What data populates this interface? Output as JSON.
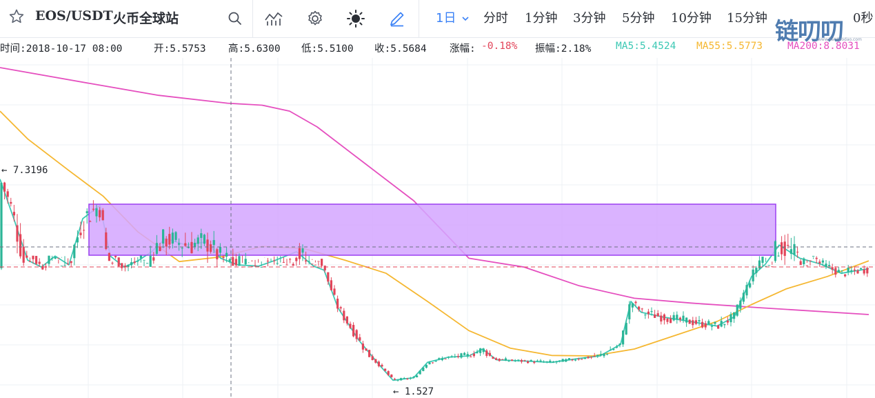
{
  "toolbar": {
    "pair": "EOS/USDT",
    "exchange": "火币全球站",
    "icons": [
      "star-icon",
      "search-icon",
      "indicator-icon",
      "settings-icon",
      "theme-sun-icon",
      "draw-pencil-icon"
    ],
    "periods": [
      {
        "label": "1日",
        "active": true
      },
      {
        "label": "分时",
        "active": false
      },
      {
        "label": "1分钟",
        "active": false
      },
      {
        "label": "3分钟",
        "active": false
      },
      {
        "label": "5分钟",
        "active": false
      },
      {
        "label": "10分钟",
        "active": false
      },
      {
        "label": "15分钟",
        "active": false
      },
      {
        "label": "0秒",
        "active": false
      }
    ],
    "watermark": "链叨叨",
    "watermark_url": "www.liandaodao.com"
  },
  "info": {
    "time": "时间:2018-10-17 08:00",
    "open": "开:5.5753",
    "high": "高:5.6300",
    "low": "低:5.5100",
    "close": "收:5.5684",
    "change": "涨幅:",
    "change_val": "-0.18%",
    "amplitude": "振幅:2.18%",
    "ma5": "MA5:5.4524",
    "ma55": "MA55:5.5773",
    "ma200": "MA200:8.8031"
  },
  "colors": {
    "up": "#2bb597",
    "down": "#e2455a",
    "ma5": "#3cc8b4",
    "ma55": "#f5b731",
    "ma200": "#e54fbf",
    "box_fill": "#d3a6ff",
    "box_stroke": "#9b3ff0",
    "active": "#3b82f6",
    "change_neg": "#e2455a"
  },
  "chart_data": {
    "type": "candlestick",
    "ylim": [
      1.0,
      10.0
    ],
    "grid": true,
    "annotations": {
      "max_label": "← 7.3196",
      "max_value": 7.3196,
      "min_label": "← 1.527",
      "min_value": 1.527,
      "rectangle": {
        "price_high": 6.52,
        "price_low": 5.28
      },
      "current_price_line": 5.5684
    },
    "ma200": [
      [
        0,
        9.9
      ],
      [
        130,
        9.5
      ],
      [
        230,
        9.2
      ],
      [
        330,
        9.0
      ],
      [
        380,
        8.95
      ],
      [
        420,
        8.8
      ],
      [
        460,
        8.4
      ],
      [
        520,
        7.6
      ],
      [
        600,
        6.6
      ],
      [
        680,
        5.7
      ],
      [
        760,
        4.9
      ],
      [
        840,
        4.3
      ],
      [
        920,
        3.9
      ],
      [
        1000,
        3.75
      ],
      [
        1100,
        3.6
      ],
      [
        1260,
        3.45
      ]
    ],
    "ma55": [
      [
        0,
        8.8
      ],
      [
        40,
        8.1
      ],
      [
        100,
        7.3
      ],
      [
        150,
        6.7
      ],
      [
        200,
        6.1
      ],
      [
        260,
        5.65
      ],
      [
        320,
        5.72
      ],
      [
        380,
        5.88
      ],
      [
        440,
        5.85
      ],
      [
        500,
        5.4
      ],
      [
        560,
        4.7
      ],
      [
        620,
        3.8
      ],
      [
        680,
        3.1
      ],
      [
        740,
        2.72
      ],
      [
        800,
        2.56
      ],
      [
        860,
        2.55
      ],
      [
        920,
        2.7
      ],
      [
        980,
        3.0
      ],
      [
        1040,
        3.3
      ],
      [
        1090,
        3.7
      ],
      [
        1140,
        4.2
      ],
      [
        1200,
        4.6
      ],
      [
        1260,
        5.1
      ]
    ],
    "ma5": [
      [
        0,
        7.1
      ],
      [
        20,
        6.3
      ],
      [
        40,
        5.4
      ],
      [
        60,
        4.9
      ],
      [
        80,
        5.3
      ],
      [
        100,
        5.6
      ],
      [
        120,
        6.3
      ],
      [
        145,
        6.5
      ],
      [
        160,
        5.3
      ],
      [
        180,
        4.9
      ],
      [
        200,
        5.1
      ],
      [
        220,
        5.8
      ],
      [
        240,
        6.0
      ],
      [
        270,
        5.9
      ],
      [
        300,
        5.95
      ],
      [
        320,
        5.7
      ],
      [
        345,
        5.6
      ],
      [
        375,
        5.55
      ],
      [
        400,
        5.4
      ],
      [
        430,
        5.8
      ],
      [
        455,
        5.55
      ],
      [
        470,
        4.8
      ],
      [
        490,
        3.6
      ],
      [
        520,
        2.9
      ],
      [
        550,
        2.2
      ],
      [
        570,
        1.6
      ],
      [
        600,
        1.7
      ],
      [
        620,
        2.3
      ],
      [
        650,
        2.5
      ],
      [
        680,
        2.55
      ],
      [
        700,
        2.7
      ],
      [
        720,
        2.4
      ],
      [
        760,
        2.35
      ],
      [
        800,
        2.3
      ],
      [
        840,
        2.45
      ],
      [
        870,
        2.55
      ],
      [
        900,
        2.8
      ],
      [
        915,
        3.8
      ],
      [
        930,
        3.5
      ],
      [
        960,
        3.4
      ],
      [
        1000,
        3.3
      ],
      [
        1040,
        3.2
      ],
      [
        1065,
        3.4
      ],
      [
        1090,
        4.6
      ],
      [
        1110,
        5.5
      ],
      [
        1130,
        5.9
      ],
      [
        1160,
        5.7
      ],
      [
        1190,
        5.0
      ],
      [
        1220,
        4.7
      ],
      [
        1260,
        4.85
      ]
    ]
  }
}
